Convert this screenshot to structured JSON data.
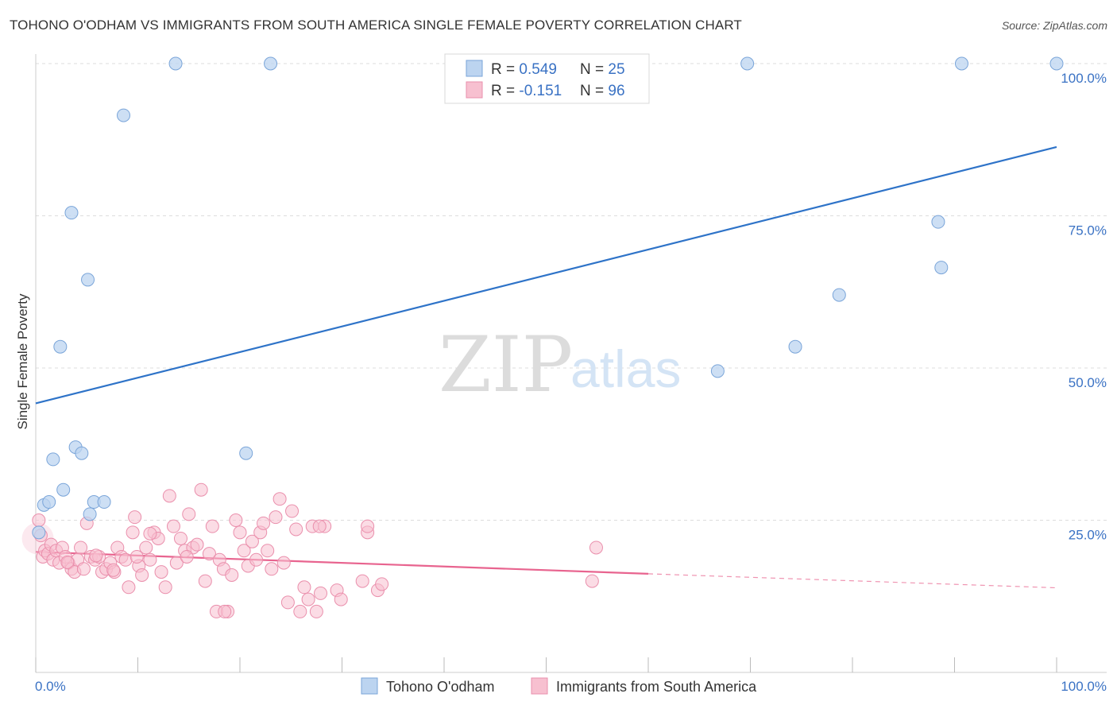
{
  "title": "TOHONO O'ODHAM VS IMMIGRANTS FROM SOUTH AMERICA SINGLE FEMALE POVERTY CORRELATION CHART",
  "source": "Source: ZipAtlas.com",
  "watermark": {
    "zip": "ZIP",
    "atlas": "atlas"
  },
  "colors": {
    "blue_fill": "#bcd4f0",
    "blue_stroke": "#7aa5d9",
    "blue_line": "#2e73c8",
    "pink_fill": "#f7c0d0",
    "pink_stroke": "#ea8fac",
    "pink_line": "#e8648f",
    "tick_text": "#3a72c4",
    "grid": "#dddddd"
  },
  "legend": {
    "rows": [
      {
        "r_label": "R = ",
        "r_value": "0.549",
        "n_label": "N = ",
        "n_value": "25"
      },
      {
        "r_label": "R = ",
        "r_value": "-0.151",
        "n_label": "N = ",
        "n_value": "96"
      }
    ]
  },
  "bottom_legend": [
    "Tohono O'odham",
    "Immigrants from South America"
  ],
  "chart_data": {
    "type": "scatter",
    "xlabel": "",
    "ylabel": "Single Female Poverty",
    "xlim": [
      0,
      100
    ],
    "ylim": [
      0,
      100
    ],
    "x_tick_labels": [
      "0.0%",
      "100.0%"
    ],
    "y_ticks": [
      25,
      50,
      75,
      100
    ],
    "y_tick_labels": [
      "25.0%",
      "50.0%",
      "75.0%",
      "100.0%"
    ],
    "grid": "horizontal dashed",
    "legend_placement": "top-center",
    "series": [
      {
        "name": "Tohono O'odham",
        "color": "#7aa5d9",
        "r": 0.549,
        "n": 25,
        "trend": {
          "x": [
            0,
            100
          ],
          "y": [
            44.2,
            86.3
          ],
          "style": "solid"
        },
        "points": [
          [
            0.3,
            23
          ],
          [
            0.8,
            27.5
          ],
          [
            1.3,
            28
          ],
          [
            1.7,
            35
          ],
          [
            2.4,
            53.5
          ],
          [
            2.7,
            30
          ],
          [
            3.5,
            75.5
          ],
          [
            3.9,
            37
          ],
          [
            4.5,
            36
          ],
          [
            5.1,
            64.5
          ],
          [
            5.3,
            26
          ],
          [
            5.7,
            28
          ],
          [
            6.7,
            28
          ],
          [
            8.6,
            91.5
          ],
          [
            13.7,
            100
          ],
          [
            20.6,
            36
          ],
          [
            23,
            100
          ],
          [
            66.8,
            49.5
          ],
          [
            69.7,
            100
          ],
          [
            74.4,
            53.5
          ],
          [
            78.7,
            62
          ],
          [
            88.4,
            74
          ],
          [
            90.7,
            100
          ],
          [
            88.7,
            66.5
          ],
          [
            100,
            100
          ]
        ]
      },
      {
        "name": "Immigrants from South America",
        "color": "#ea8fac",
        "r": -0.151,
        "n": 96,
        "trend": {
          "x": [
            0,
            60
          ],
          "y": [
            19.8,
            16.2
          ],
          "style": "solid",
          "extension": {
            "x": [
              60,
              100
            ],
            "y": [
              16.2,
              13.9
            ],
            "style": "dashed"
          }
        },
        "points": [
          [
            0.3,
            25
          ],
          [
            0.5,
            22.5
          ],
          [
            0.7,
            19
          ],
          [
            0.9,
            20
          ],
          [
            1.2,
            19.5
          ],
          [
            1.5,
            21
          ],
          [
            1.7,
            18.5
          ],
          [
            2.0,
            20
          ],
          [
            2.3,
            18
          ],
          [
            2.6,
            20.5
          ],
          [
            2.9,
            19
          ],
          [
            3.2,
            18
          ],
          [
            3.5,
            17
          ],
          [
            3.8,
            16.5
          ],
          [
            4.1,
            18.5
          ],
          [
            4.4,
            20.5
          ],
          [
            4.7,
            17
          ],
          [
            5.0,
            24.5
          ],
          [
            5.4,
            19
          ],
          [
            5.8,
            18.5
          ],
          [
            6.2,
            19
          ],
          [
            6.5,
            16.5
          ],
          [
            6.9,
            17
          ],
          [
            7.3,
            18
          ],
          [
            7.7,
            16.5
          ],
          [
            8.0,
            20.5
          ],
          [
            8.4,
            19
          ],
          [
            8.8,
            18.5
          ],
          [
            9.1,
            14
          ],
          [
            9.5,
            23
          ],
          [
            9.7,
            25.5
          ],
          [
            10.1,
            17.5
          ],
          [
            10.4,
            16
          ],
          [
            10.8,
            20.5
          ],
          [
            11.2,
            18.5
          ],
          [
            11.6,
            23
          ],
          [
            12.0,
            22
          ],
          [
            12.3,
            16.5
          ],
          [
            12.7,
            14
          ],
          [
            13.1,
            29
          ],
          [
            13.5,
            24
          ],
          [
            13.8,
            18
          ],
          [
            14.2,
            22
          ],
          [
            14.6,
            20
          ],
          [
            15.0,
            26
          ],
          [
            15.4,
            20.5
          ],
          [
            15.8,
            21
          ],
          [
            16.2,
            30
          ],
          [
            16.6,
            15
          ],
          [
            17.0,
            19.5
          ],
          [
            17.3,
            24
          ],
          [
            17.7,
            10
          ],
          [
            18.0,
            18.5
          ],
          [
            18.4,
            17
          ],
          [
            18.8,
            10
          ],
          [
            19.2,
            16
          ],
          [
            19.6,
            25
          ],
          [
            20.0,
            23
          ],
          [
            20.4,
            20
          ],
          [
            20.8,
            17.5
          ],
          [
            21.2,
            21.5
          ],
          [
            21.6,
            18.5
          ],
          [
            22.0,
            23
          ],
          [
            22.3,
            24.5
          ],
          [
            22.7,
            20
          ],
          [
            23.1,
            17
          ],
          [
            23.5,
            25.5
          ],
          [
            23.9,
            28.5
          ],
          [
            24.3,
            18
          ],
          [
            24.7,
            11.5
          ],
          [
            25.1,
            26.5
          ],
          [
            25.5,
            23.5
          ],
          [
            25.9,
            10
          ],
          [
            26.3,
            14
          ],
          [
            26.7,
            12
          ],
          [
            27.1,
            24
          ],
          [
            27.5,
            10
          ],
          [
            27.9,
            13
          ],
          [
            28.3,
            24
          ],
          [
            29.5,
            13.5
          ],
          [
            29.9,
            12
          ],
          [
            32.0,
            15
          ],
          [
            32.5,
            23
          ],
          [
            32.5,
            24
          ],
          [
            33.5,
            13.5
          ],
          [
            33.9,
            14.5
          ],
          [
            27.8,
            24
          ],
          [
            18.5,
            10
          ],
          [
            14.8,
            19
          ],
          [
            7.6,
            16.8
          ],
          [
            5.9,
            19.2
          ],
          [
            11.2,
            22.8
          ],
          [
            9.9,
            19
          ],
          [
            3.1,
            18.1
          ],
          [
            54.5,
            15
          ],
          [
            54.9,
            20.5
          ]
        ]
      }
    ]
  }
}
